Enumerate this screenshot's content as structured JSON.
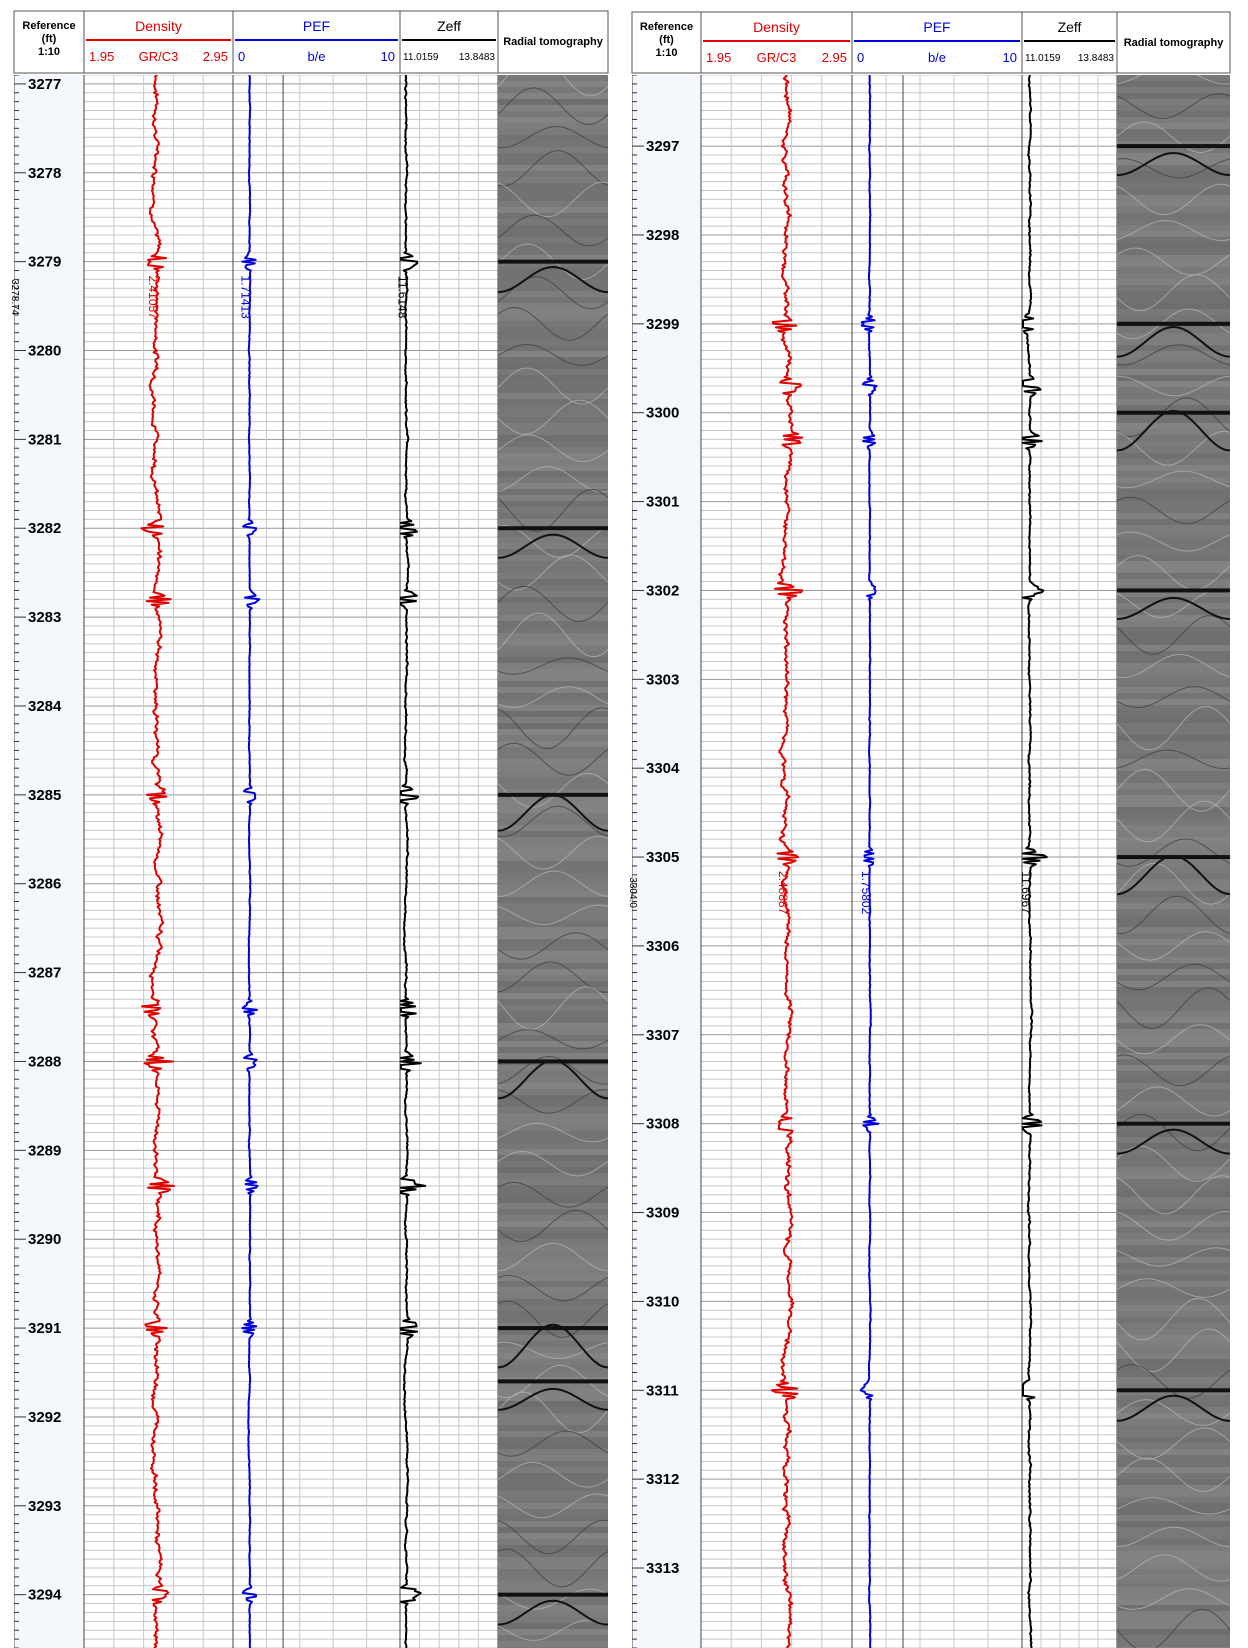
{
  "colors": {
    "density": "#e00000",
    "pef": "#0000dd",
    "zeff": "#000000",
    "grid": "#c8c8c8",
    "ref_bg": "#f4f8fc"
  },
  "chart_data": [
    {
      "type": "line",
      "title": "",
      "tracks": {
        "reference": {
          "title": "Reference",
          "unit": "(ft)",
          "scale": "1:10"
        },
        "density": {
          "title": "Density",
          "min_label": "1.95",
          "unit": "GR/C3",
          "max_label": "2.95",
          "range": [
            1.95,
            2.95
          ]
        },
        "pef": {
          "title": "PEF",
          "min_label": "0",
          "unit": "b/e",
          "max_label": "10",
          "range": [
            0,
            10
          ]
        },
        "zeff": {
          "title": "Zeff",
          "min_label": "11.0159",
          "max_label": "13.8483",
          "range": [
            11.0159,
            13.8483
          ]
        },
        "image": {
          "title": "Radial tomography"
        }
      },
      "depth_range": [
        3276.9,
        3294.6
      ],
      "depth_ticks": [
        "3277",
        "3278",
        "3279",
        "3280",
        "3281",
        "3282",
        "3283",
        "3284",
        "3285",
        "3286",
        "3287",
        "3288",
        "3289",
        "3290",
        "3291",
        "3292",
        "3293",
        "3294"
      ],
      "side_marker": "3278.74",
      "readouts": {
        "density": "2.41057",
        "pef": "1.71413",
        "zeff": "11.6148"
      },
      "readout_depth": 3279.4,
      "density_base": 2.44,
      "pef_base": 1.0,
      "zeff_base": 11.2,
      "events": [
        3279.0,
        3282.0,
        3282.8,
        3285.0,
        3287.4,
        3288.0,
        3289.4,
        3291.0,
        3294.0
      ],
      "image_fractures": [
        3279.0,
        3282.0,
        3285.0,
        3288.0,
        3291.0,
        3291.6,
        3294.0
      ]
    },
    {
      "type": "line",
      "title": "",
      "tracks": {
        "reference": {
          "title": "Reference",
          "unit": "(ft)",
          "scale": "1:10"
        },
        "density": {
          "title": "Density",
          "min_label": "1.95",
          "unit": "GR/C3",
          "max_label": "2.95",
          "range": [
            1.95,
            2.95
          ]
        },
        "pef": {
          "title": "PEF",
          "min_label": "0",
          "unit": "b/e",
          "max_label": "10",
          "range": [
            0,
            10
          ]
        },
        "zeff": {
          "title": "Zeff",
          "min_label": "11.0159",
          "max_label": "13.8483",
          "range": [
            11.0159,
            13.8483
          ]
        },
        "image": {
          "title": "Radial tomography"
        }
      },
      "depth_range": [
        3296.2,
        3313.9
      ],
      "depth_ticks": [
        "3297",
        "3298",
        "3299",
        "3300",
        "3301",
        "3302",
        "3303",
        "3304",
        "3305",
        "3306",
        "3307",
        "3308",
        "3309",
        "3310",
        "3311",
        "3312",
        "3313"
      ],
      "side_marker": "3304.0",
      "readouts": {
        "density": "2.48887",
        "pef": "1.75802",
        "zeff": "11.6967"
      },
      "readout_depth": 3305.4,
      "density_base": 2.52,
      "pef_base": 1.05,
      "zeff_base": 11.25,
      "events": [
        3299.0,
        3299.7,
        3300.3,
        3302.0,
        3305.0,
        3308.0,
        3311.0
      ],
      "image_fractures": [
        3297.0,
        3299.0,
        3300.0,
        3302.0,
        3305.0,
        3308.0,
        3311.0
      ]
    }
  ]
}
